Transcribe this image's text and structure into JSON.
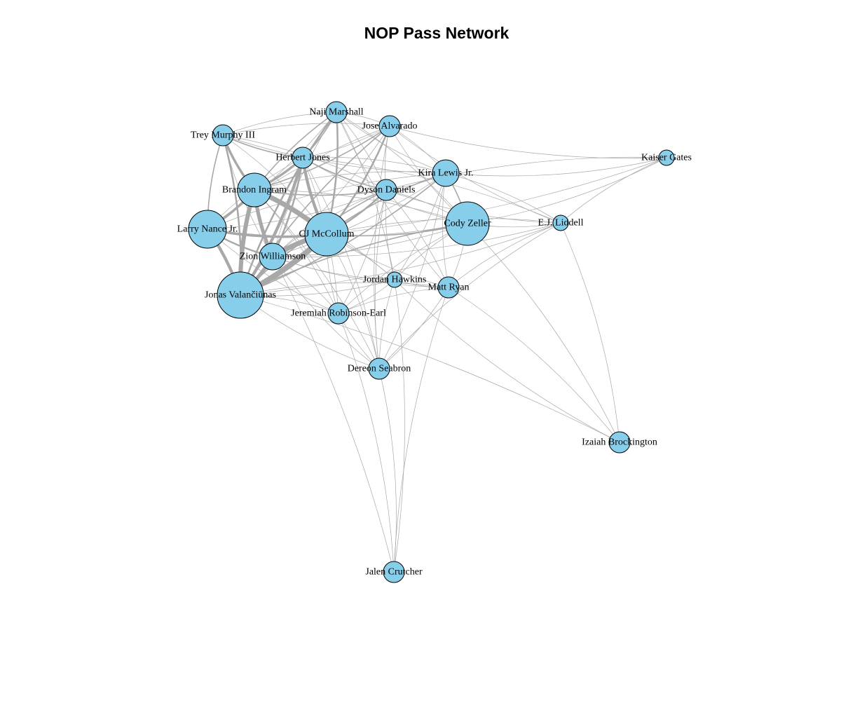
{
  "title": "NOP Pass Network",
  "colors": {
    "node_fill": "#87ceeb",
    "edge": "#a8a8a8",
    "node_stroke": "#000000"
  },
  "nodes": [
    {
      "id": "naji",
      "label": "Naji Marshall",
      "weight": 2
    },
    {
      "id": "jose",
      "label": "Jose Alvarado",
      "weight": 2
    },
    {
      "id": "trey",
      "label": "Trey Murphy III",
      "weight": 2
    },
    {
      "id": "herb",
      "label": "Herbert Jones",
      "weight": 2
    },
    {
      "id": "kaiser",
      "label": "Kaiser Gates",
      "weight": 1
    },
    {
      "id": "kira",
      "label": "Kira Lewis Jr.",
      "weight": 3
    },
    {
      "id": "brandon",
      "label": "Brandon Ingram",
      "weight": 5
    },
    {
      "id": "dyson",
      "label": "Dyson Daniels",
      "weight": 2
    },
    {
      "id": "larry",
      "label": "Larry Nance Jr.",
      "weight": 6
    },
    {
      "id": "cj",
      "label": "CJ McCollum",
      "weight": 7
    },
    {
      "id": "cody",
      "label": "Cody Zeller",
      "weight": 7
    },
    {
      "id": "ej",
      "label": "E.J. Liddell",
      "weight": 1
    },
    {
      "id": "zion",
      "label": "Zion Williamson",
      "weight": 3
    },
    {
      "id": "jordan",
      "label": "Jordan Hawkins",
      "weight": 1
    },
    {
      "id": "matt",
      "label": "Matt Ryan",
      "weight": 2
    },
    {
      "id": "jonas",
      "label": "Jonas Valančiūnas",
      "weight": 8
    },
    {
      "id": "jeremiah",
      "label": "Jeremiah Robinson-Earl",
      "weight": 2
    },
    {
      "id": "dereon",
      "label": "Dereon Seabron",
      "weight": 2
    },
    {
      "id": "izaiah",
      "label": "Izaiah Brockington",
      "weight": 2
    },
    {
      "id": "jalen",
      "label": "Jalen Crutcher",
      "weight": 2
    }
  ],
  "edges": [
    [
      "brandon",
      "cj",
      8
    ],
    [
      "brandon",
      "jonas",
      7
    ],
    [
      "cj",
      "jonas",
      9
    ],
    [
      "cj",
      "zion",
      8
    ],
    [
      "zion",
      "jonas",
      6
    ],
    [
      "brandon",
      "zion",
      6
    ],
    [
      "larry",
      "jonas",
      5
    ],
    [
      "larry",
      "brandon",
      4
    ],
    [
      "herb",
      "jonas",
      5
    ],
    [
      "herb",
      "cj",
      5
    ],
    [
      "herb",
      "brandon",
      4
    ],
    [
      "trey",
      "brandon",
      4
    ],
    [
      "trey",
      "jonas",
      3
    ],
    [
      "larry",
      "cj",
      4
    ],
    [
      "naji",
      "cj",
      3
    ],
    [
      "naji",
      "jonas",
      3
    ],
    [
      "jose",
      "cj",
      3
    ],
    [
      "jose",
      "jonas",
      2
    ],
    [
      "dyson",
      "cj",
      3
    ],
    [
      "dyson",
      "jonas",
      2
    ],
    [
      "herb",
      "zion",
      3
    ],
    [
      "trey",
      "larry",
      2
    ],
    [
      "cj",
      "kira",
      2
    ],
    [
      "cody",
      "kira",
      2
    ],
    [
      "cody",
      "cj",
      2
    ],
    [
      "naji",
      "brandon",
      2
    ],
    [
      "jose",
      "brandon",
      2
    ],
    [
      "trey",
      "herb",
      2
    ],
    [
      "naji",
      "herb",
      2
    ],
    [
      "larry",
      "zion",
      3
    ],
    [
      "dyson",
      "brandon",
      2
    ],
    [
      "herb",
      "dyson",
      2
    ],
    [
      "kira",
      "jonas",
      2
    ],
    [
      "cody",
      "jonas",
      2
    ],
    [
      "matt",
      "cj",
      1
    ],
    [
      "jordan",
      "cj",
      1
    ],
    [
      "jordan",
      "jonas",
      1
    ],
    [
      "jeremiah",
      "jonas",
      1
    ],
    [
      "jeremiah",
      "cj",
      1
    ],
    [
      "jeremiah",
      "brandon",
      1
    ],
    [
      "naji",
      "jose",
      1
    ],
    [
      "naji",
      "trey",
      1
    ],
    [
      "naji",
      "dyson",
      1
    ],
    [
      "naji",
      "kira",
      1
    ],
    [
      "naji",
      "cody",
      1
    ],
    [
      "jose",
      "dyson",
      1
    ],
    [
      "jose",
      "kira",
      1
    ],
    [
      "jose",
      "cody",
      1
    ],
    [
      "jose",
      "herb",
      1
    ],
    [
      "jose",
      "trey",
      1
    ],
    [
      "jose",
      "zion",
      1
    ],
    [
      "jose",
      "larry",
      1
    ],
    [
      "naji",
      "larry",
      1
    ],
    [
      "naji",
      "zion",
      1
    ],
    [
      "trey",
      "cj",
      1
    ],
    [
      "trey",
      "zion",
      1
    ],
    [
      "trey",
      "dyson",
      1
    ],
    [
      "herb",
      "larry",
      1
    ],
    [
      "herb",
      "kira",
      1
    ],
    [
      "herb",
      "cody",
      1
    ],
    [
      "kira",
      "dyson",
      1
    ],
    [
      "kira",
      "brandon",
      1
    ],
    [
      "kira",
      "zion",
      1
    ],
    [
      "kira",
      "larry",
      1
    ],
    [
      "kira",
      "ej",
      1
    ],
    [
      "kira",
      "matt",
      1
    ],
    [
      "kira",
      "jordan",
      1
    ],
    [
      "kira",
      "kaiser",
      1
    ],
    [
      "dyson",
      "cody",
      1
    ],
    [
      "dyson",
      "zion",
      1
    ],
    [
      "dyson",
      "larry",
      1
    ],
    [
      "dyson",
      "jordan",
      1
    ],
    [
      "dyson",
      "matt",
      1
    ],
    [
      "dyson",
      "ej",
      1
    ],
    [
      "dyson",
      "jeremiah",
      1
    ],
    [
      "cody",
      "ej",
      1
    ],
    [
      "cody",
      "matt",
      1
    ],
    [
      "cody",
      "jordan",
      1
    ],
    [
      "cody",
      "zion",
      1
    ],
    [
      "cody",
      "brandon",
      1
    ],
    [
      "cody",
      "larry",
      1
    ],
    [
      "cody",
      "kaiser",
      1
    ],
    [
      "cody",
      "izaiah",
      1
    ],
    [
      "cody",
      "jeremiah",
      1
    ],
    [
      "ej",
      "kaiser",
      1
    ],
    [
      "ej",
      "cj",
      1
    ],
    [
      "ej",
      "jonas",
      1
    ],
    [
      "ej",
      "matt",
      1
    ],
    [
      "ej",
      "zion",
      1
    ],
    [
      "ej",
      "dereon",
      1
    ],
    [
      "ej",
      "jose",
      1
    ],
    [
      "ej",
      "herb",
      1
    ],
    [
      "kaiser",
      "jose",
      1
    ],
    [
      "kaiser",
      "dyson",
      1
    ],
    [
      "kaiser",
      "cj",
      1
    ],
    [
      "jordan",
      "matt",
      1
    ],
    [
      "jordan",
      "zion",
      1
    ],
    [
      "jordan",
      "brandon",
      1
    ],
    [
      "jordan",
      "jeremiah",
      1
    ],
    [
      "jordan",
      "dereon",
      1
    ],
    [
      "jordan",
      "jalen",
      1
    ],
    [
      "matt",
      "jonas",
      1
    ],
    [
      "matt",
      "zion",
      1
    ],
    [
      "matt",
      "jeremiah",
      1
    ],
    [
      "matt",
      "dereon",
      1
    ],
    [
      "matt",
      "jalen",
      1
    ],
    [
      "matt",
      "izaiah",
      1
    ],
    [
      "jeremiah",
      "zion",
      1
    ],
    [
      "jeremiah",
      "larry",
      1
    ],
    [
      "jeremiah",
      "dereon",
      1
    ],
    [
      "jeremiah",
      "jalen",
      1
    ],
    [
      "jeremiah",
      "herb",
      1
    ],
    [
      "dereon",
      "jonas",
      1
    ],
    [
      "dereon",
      "cj",
      1
    ],
    [
      "dereon",
      "zion",
      1
    ],
    [
      "dereon",
      "brandon",
      1
    ],
    [
      "dereon",
      "jalen",
      1
    ],
    [
      "dereon",
      "herb",
      1
    ],
    [
      "dereon",
      "dyson",
      1
    ],
    [
      "dereon",
      "kira",
      1
    ],
    [
      "dereon",
      "jose",
      1
    ],
    [
      "izaiah",
      "jonas",
      1
    ],
    [
      "izaiah",
      "jordan",
      1
    ],
    [
      "izaiah",
      "ej",
      1
    ],
    [
      "jonas",
      "jose",
      1
    ],
    [
      "jordan",
      "naji",
      1
    ],
    [
      "matt",
      "naji",
      1
    ],
    [
      "trey",
      "kira",
      1
    ],
    [
      "zion",
      "jalen",
      1
    ]
  ]
}
